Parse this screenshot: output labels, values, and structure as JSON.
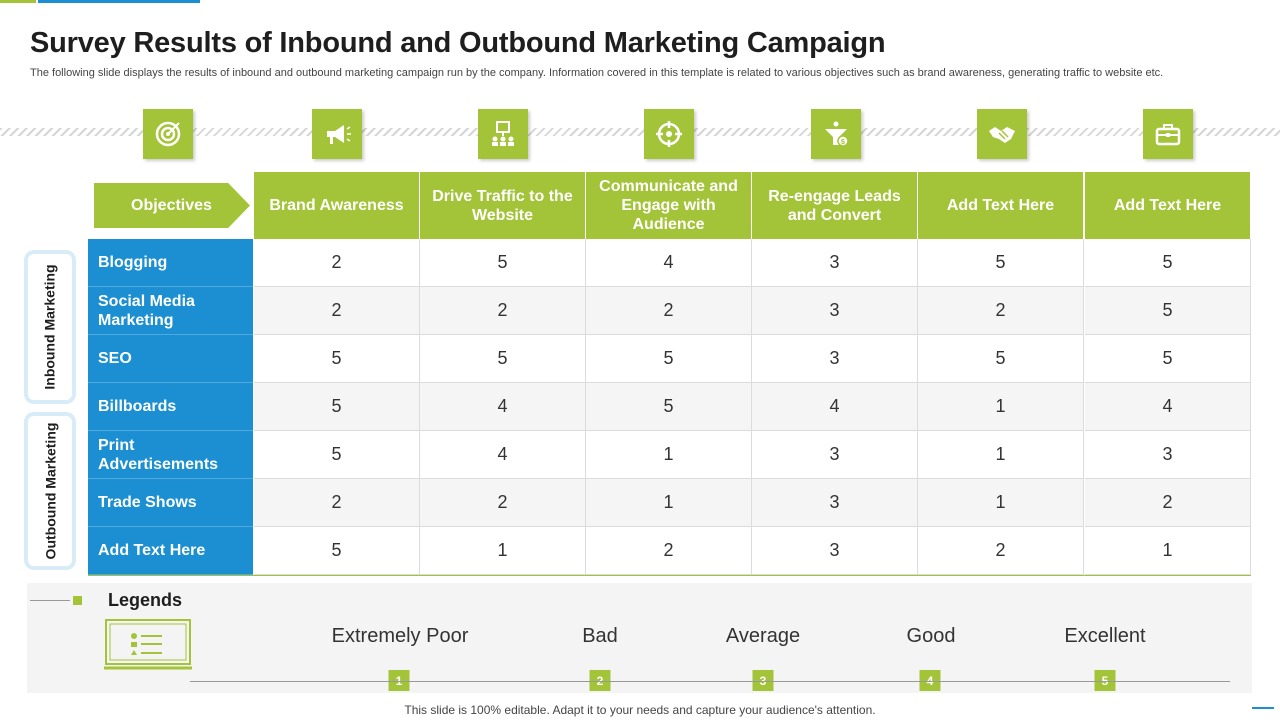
{
  "title": "Survey Results of Inbound and Outbound Marketing Campaign",
  "subtitle": "The following slide displays the results of inbound and outbound marketing campaign run by the company. Information covered in this template is related to various objectives such as brand awareness, generating traffic to website etc.",
  "icons": [
    "target-icon",
    "megaphone-icon",
    "website-traffic-icon",
    "crosshair-icon",
    "funnel-dollar-icon",
    "handshake-icon",
    "briefcase-icon"
  ],
  "table": {
    "objectives_label": "Objectives",
    "columns": [
      "Brand Awareness",
      "Drive Traffic to the Website",
      "Communicate and Engage with Audience",
      "Re-engage Leads and Convert",
      "Add Text Here",
      "Add Text Here"
    ],
    "rows": [
      {
        "label": "Blogging",
        "values": [
          "2",
          "5",
          "4",
          "3",
          "5",
          "5"
        ]
      },
      {
        "label": "Social Media Marketing",
        "values": [
          "2",
          "2",
          "2",
          "3",
          "2",
          "5"
        ]
      },
      {
        "label": "SEO",
        "values": [
          "5",
          "5",
          "5",
          "3",
          "5",
          "5"
        ]
      },
      {
        "label": "Billboards",
        "values": [
          "5",
          "4",
          "5",
          "4",
          "1",
          "4"
        ]
      },
      {
        "label": "Print Advertisements",
        "values": [
          "5",
          "4",
          "1",
          "3",
          "1",
          "3"
        ]
      },
      {
        "label": "Trade Shows",
        "values": [
          "2",
          "2",
          "1",
          "3",
          "1",
          "2"
        ]
      },
      {
        "label": "Add Text Here",
        "values": [
          "5",
          "1",
          "2",
          "3",
          "2",
          "1"
        ]
      }
    ],
    "groups": [
      "Inbound Marketing",
      "Outbound Marketing"
    ]
  },
  "legend": {
    "title": "Legends",
    "items": [
      {
        "label": "Extremely Poor",
        "num": "1"
      },
      {
        "label": "Bad",
        "num": "2"
      },
      {
        "label": "Average",
        "num": "3"
      },
      {
        "label": "Good",
        "num": "4"
      },
      {
        "label": "Excellent",
        "num": "5"
      }
    ]
  },
  "footer": "This slide is 100% editable. Adapt it to your needs and capture your audience's attention.",
  "colors": {
    "accent_green": "#a3c439",
    "accent_blue": "#1b8fd1"
  }
}
